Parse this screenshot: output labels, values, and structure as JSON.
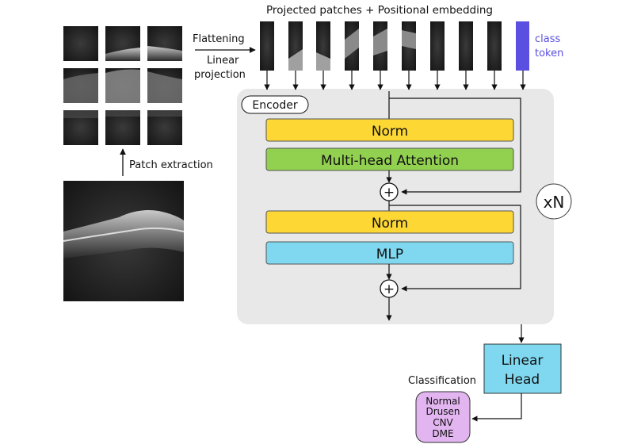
{
  "top_title": "Projected patches + Positional embedding",
  "flatten": {
    "line1": "Flattening",
    "line2": "Linear",
    "line3": "projection"
  },
  "patch_extraction": "Patch extraction",
  "class_token": {
    "line1": "class",
    "line2": "token"
  },
  "encoder": {
    "label": "Encoder",
    "norm1": "Norm",
    "attention": "Multi-head Attention",
    "norm2": "Norm",
    "mlp": "MLP",
    "plus": "+",
    "repeat": "xN"
  },
  "head": {
    "line1": "Linear",
    "line2": "Head"
  },
  "classification": "Classification",
  "classes": [
    "Normal",
    "Drusen",
    "CNV",
    "DME"
  ],
  "colors": {
    "norm": "#fdd835",
    "attention": "#92d050",
    "mlp": "#7fd8f0",
    "linear_head": "#7fd8f0",
    "class_token": "#5a4fe0",
    "classes_box": "#e2b5f0",
    "encoder_bg": "#e8e8e8"
  }
}
